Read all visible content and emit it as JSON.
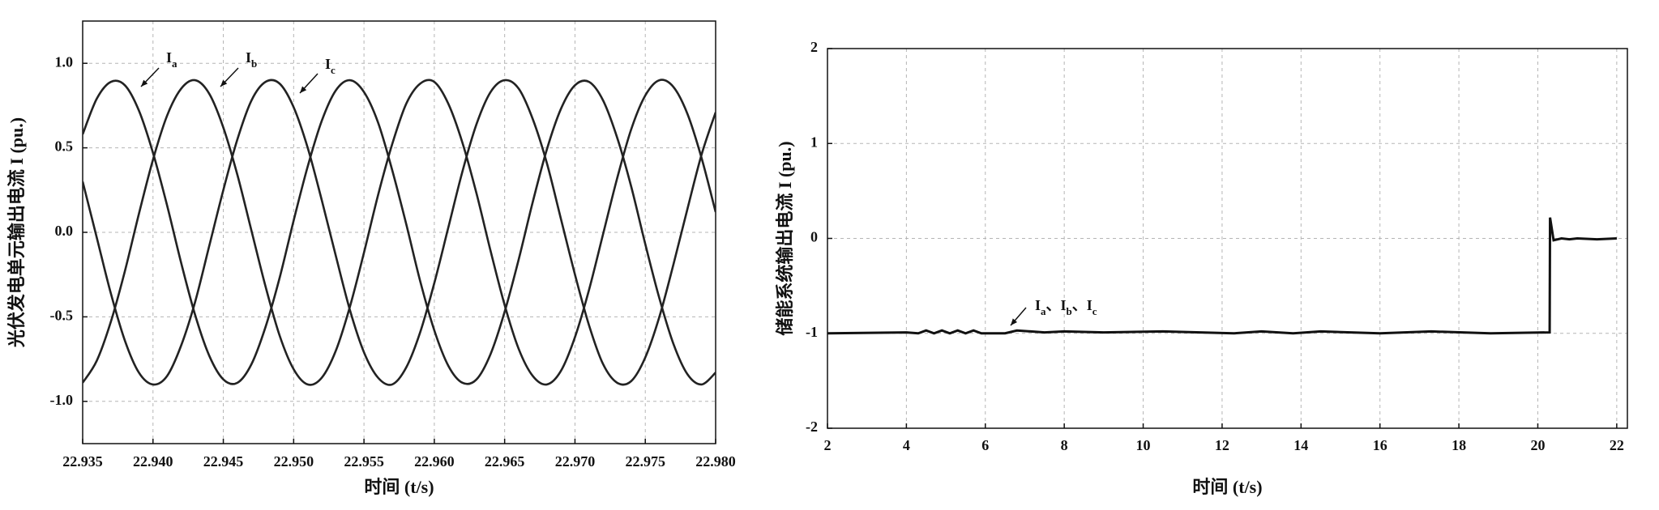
{
  "chart_data": [
    {
      "type": "line",
      "smooth": true,
      "grid": true,
      "y_label": "光伏发电单元输出电流 I (pu.)",
      "x_label": "时间 (t/s)",
      "xlim": [
        22.935,
        22.98
      ],
      "ylim": [
        -1.25,
        1.25
      ],
      "xticks": [
        22.935,
        {
          "value": 22.94,
          "label": "22.940"
        },
        22.945,
        {
          "value": 22.95,
          "label": "22.950"
        },
        22.955,
        {
          "value": 22.96,
          "label": "22.960"
        },
        22.965,
        {
          "value": 22.97,
          "label": "22.970"
        },
        22.975,
        {
          "value": 22.98,
          "label": "22.980"
        }
      ],
      "yticks": [
        {
          "value": 1,
          "label": "1.0"
        },
        0.5,
        {
          "value": 0,
          "label": "0.0"
        },
        -0.5,
        {
          "value": -1,
          "label": "-1.0"
        }
      ],
      "x": [
        22.935,
        22.936,
        22.937,
        22.938,
        22.939,
        22.94,
        22.941,
        22.942,
        22.943,
        22.944,
        22.945,
        22.946,
        22.947,
        22.948,
        22.949,
        22.95,
        22.951,
        22.952,
        22.953,
        22.954,
        22.955,
        22.956,
        22.957,
        22.958,
        22.959,
        22.96,
        22.961,
        22.962,
        22.963,
        22.964,
        22.965,
        22.966,
        22.967,
        22.968,
        22.969,
        22.97,
        22.971,
        22.972,
        22.973,
        22.974,
        22.975,
        22.976,
        22.977,
        22.978,
        22.979,
        22.98
      ],
      "series": [
        {
          "name": "I",
          "subscript": "a",
          "color": "#222222",
          "values": [
            0.58,
            0.79,
            0.89,
            0.87,
            0.72,
            0.47,
            0.16,
            -0.18,
            -0.49,
            -0.73,
            -0.87,
            -0.89,
            -0.78,
            -0.56,
            -0.27,
            0.07,
            0.39,
            0.66,
            0.84,
            0.9,
            0.83,
            0.65,
            0.37,
            0.05,
            -0.29,
            -0.58,
            -0.79,
            -0.89,
            -0.87,
            -0.72,
            -0.47,
            -0.16,
            0.18,
            0.49,
            0.73,
            0.87,
            0.89,
            0.78,
            0.56,
            0.27,
            -0.07,
            -0.39,
            -0.66,
            -0.84,
            -0.9,
            -0.83
          ]
        },
        {
          "name": "I",
          "subscript": "b",
          "color": "#222222",
          "values": [
            -0.89,
            -0.76,
            -0.53,
            -0.23,
            0.11,
            0.43,
            0.69,
            0.85,
            0.9,
            0.82,
            0.62,
            0.34,
            0.01,
            -0.32,
            -0.61,
            -0.81,
            -0.9,
            -0.86,
            -0.7,
            -0.44,
            -0.12,
            0.22,
            0.52,
            0.76,
            0.88,
            0.89,
            0.76,
            0.53,
            0.23,
            -0.11,
            -0.43,
            -0.69,
            -0.85,
            -0.9,
            -0.82,
            -0.62,
            -0.34,
            -0.01,
            0.32,
            0.61,
            0.81,
            0.9,
            0.86,
            0.7,
            0.44,
            0.12
          ]
        },
        {
          "name": "I",
          "subscript": "c",
          "color": "#222222",
          "values": [
            0.3,
            -0.03,
            -0.36,
            -0.64,
            -0.83,
            -0.9,
            -0.85,
            -0.67,
            -0.41,
            -0.08,
            0.25,
            0.55,
            0.78,
            0.89,
            0.88,
            0.74,
            0.5,
            0.19,
            -0.14,
            -0.46,
            -0.71,
            -0.86,
            -0.9,
            -0.8,
            -0.59,
            -0.3,
            0.03,
            0.36,
            0.64,
            0.83,
            0.9,
            0.85,
            0.67,
            0.41,
            0.08,
            -0.25,
            -0.55,
            -0.78,
            -0.89,
            -0.88,
            -0.74,
            -0.5,
            -0.19,
            0.14,
            0.46,
            0.71
          ]
        }
      ]
    },
    {
      "type": "line",
      "smooth": false,
      "grid": true,
      "y_label": "储能系统输出电流 I (pu.)",
      "x_label": "时间 (t/s)",
      "xlim": [
        2,
        22.27
      ],
      "ylim": [
        -2,
        2
      ],
      "xticks": [
        2,
        4,
        6,
        8,
        10,
        12,
        14,
        16,
        18,
        20,
        22
      ],
      "yticks": [
        2,
        1,
        0,
        -1,
        -2
      ],
      "x": [
        2,
        4,
        4.3,
        4.5,
        4.7,
        4.9,
        5.1,
        5.3,
        5.5,
        5.7,
        5.9,
        6.5,
        6.8,
        7.5,
        8,
        9,
        10.5,
        12.3,
        13,
        13.8,
        14.5,
        16,
        17.3,
        18.8,
        20.3,
        20.31,
        20.4,
        20.6,
        20.8,
        21,
        21.5,
        22
      ],
      "series": [
        {
          "color": "#111111",
          "values": [
            -1.0,
            -0.99,
            -1.0,
            -0.97,
            -1.0,
            -0.97,
            -1.0,
            -0.97,
            -1.0,
            -0.97,
            -1.0,
            -1.0,
            -0.97,
            -0.99,
            -0.98,
            -0.99,
            -0.98,
            -1.0,
            -0.98,
            -1.0,
            -0.98,
            -1.0,
            -0.98,
            -1.0,
            -0.99,
            0.22,
            -0.02,
            0.0,
            -0.01,
            0.0,
            -0.01,
            0.0
          ]
        }
      ],
      "annotation": {
        "parts": [
          {
            "name": "I",
            "subscript": "a"
          },
          {
            "name": "I",
            "subscript": "b"
          },
          {
            "name": "I",
            "subscript": "c"
          }
        ],
        "separator": "、"
      }
    }
  ]
}
